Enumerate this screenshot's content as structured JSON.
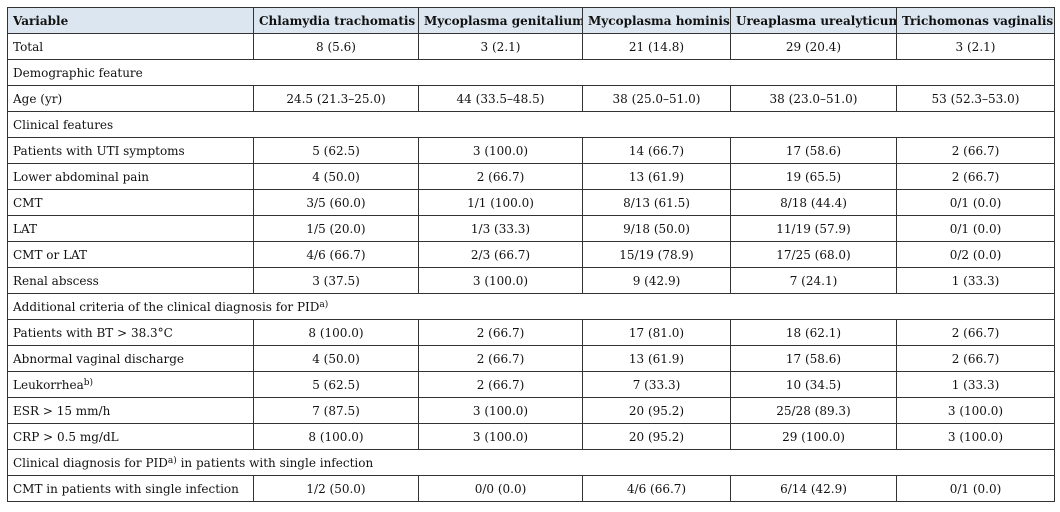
{
  "columns": [
    "Variable",
    "Chlamydia trachomatis",
    "Mycoplasma genitalium",
    "Mycoplasma hominis",
    "Ureaplasma urealyticum",
    "Trichomonas vaginalis"
  ],
  "rows": [
    {
      "type": "data",
      "label": "Total",
      "values": [
        "8 (5.6)",
        "3 (2.1)",
        "21 (14.8)",
        "29 (20.4)",
        "3 (2.1)"
      ]
    },
    {
      "type": "section",
      "label": "Demographic feature"
    },
    {
      "type": "data",
      "label": "Age (yr)",
      "values": [
        "24.5 (21.3–25.0)",
        "44 (33.5–48.5)",
        "38 (25.0–51.0)",
        "38 (23.0–51.0)",
        "53 (52.3–53.0)"
      ]
    },
    {
      "type": "section",
      "label": "Clinical features"
    },
    {
      "type": "data",
      "label": "Patients with UTI symptoms",
      "values": [
        "5 (62.5)",
        "3 (100.0)",
        "14 (66.7)",
        "17 (58.6)",
        "2 (66.7)"
      ]
    },
    {
      "type": "data",
      "label": "Lower abdominal pain",
      "values": [
        "4 (50.0)",
        "2 (66.7)",
        "13 (61.9)",
        "19 (65.5)",
        "2 (66.7)"
      ]
    },
    {
      "type": "data",
      "label": "CMT",
      "values": [
        "3/5 (60.0)",
        "1/1 (100.0)",
        "8/13 (61.5)",
        "8/18 (44.4)",
        "0/1 (0.0)"
      ]
    },
    {
      "type": "data",
      "label": "LAT",
      "values": [
        "1/5 (20.0)",
        "1/3 (33.3)",
        "9/18 (50.0)",
        "11/19 (57.9)",
        "0/1 (0.0)"
      ]
    },
    {
      "type": "data",
      "label": "CMT or LAT",
      "values": [
        "4/6 (66.7)",
        "2/3 (66.7)",
        "15/19 (78.9)",
        "17/25 (68.0)",
        "0/2 (0.0)"
      ]
    },
    {
      "type": "data",
      "label": "Renal abscess",
      "values": [
        "3 (37.5)",
        "3 (100.0)",
        "9 (42.9)",
        "7 (24.1)",
        "1 (33.3)"
      ]
    },
    {
      "type": "section",
      "label": "Additional criteria of the clinical diagnosis for PID",
      "sup": "a)"
    },
    {
      "type": "data",
      "label": "Patients with BT > 38.3°C",
      "values": [
        "8 (100.0)",
        "2 (66.7)",
        "17 (81.0)",
        "18 (62.1)",
        "2 (66.7)"
      ]
    },
    {
      "type": "data",
      "label": "Abnormal vaginal discharge",
      "values": [
        "4 (50.0)",
        "2 (66.7)",
        "13 (61.9)",
        "17 (58.6)",
        "2 (66.7)"
      ]
    },
    {
      "type": "data",
      "label": "Leukorrhea",
      "sup": "b)",
      "values": [
        "5 (62.5)",
        "2 (66.7)",
        "7 (33.3)",
        "10 (34.5)",
        "1 (33.3)"
      ]
    },
    {
      "type": "data",
      "label": "ESR > 15 mm/h",
      "values": [
        "7 (87.5)",
        "3 (100.0)",
        "20 (95.2)",
        "25/28 (89.3)",
        "3 (100.0)"
      ]
    },
    {
      "type": "data",
      "label": "CRP > 0.5 mg/dL",
      "values": [
        "8 (100.0)",
        "3 (100.0)",
        "20 (95.2)",
        "29 (100.0)",
        "3 (100.0)"
      ]
    },
    {
      "type": "section",
      "label": "Clinical diagnosis for PID",
      "sup": "a)",
      "label_after": " in patients with single infection"
    },
    {
      "type": "data",
      "label": "CMT in patients with single infection",
      "values": [
        "1/2 (50.0)",
        "0/0 (0.0)",
        "4/6 (66.7)",
        "6/14 (42.9)",
        "0/1 (0.0)"
      ]
    }
  ]
}
